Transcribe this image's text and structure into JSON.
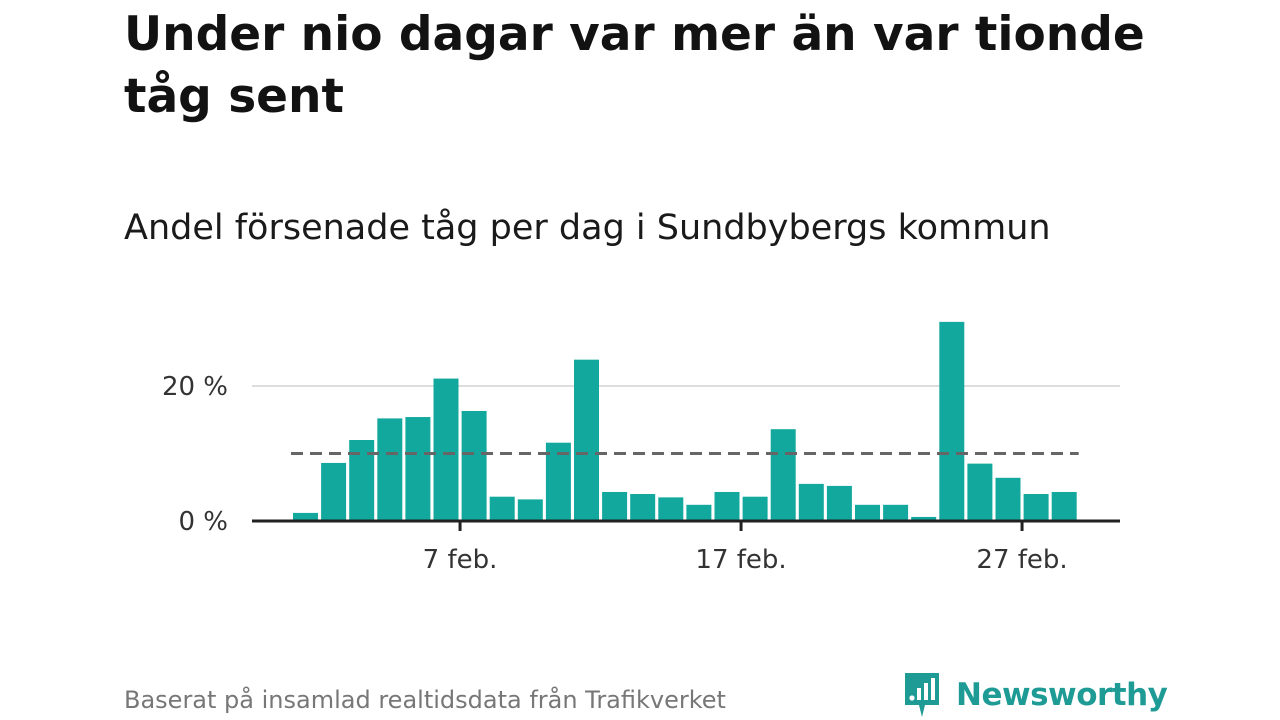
{
  "title": "Under nio dagar var mer än var tionde tåg sent",
  "subtitle": "Andel försenade tåg per dag i Sundbybergs kommun",
  "source": "Baserat på insamlad realtidsdata från Trafikverket",
  "brand": {
    "name": "Newsworthy",
    "color": "#1f9b96",
    "icon": "newsworthy-logo-icon"
  },
  "colors": {
    "bar": "#13a89e",
    "reference_line": "#666666",
    "gridline": "#dddddd",
    "axis": "#222222"
  },
  "chart_data": {
    "type": "bar",
    "title": "Andel försenade tåg per dag i Sundbybergs kommun",
    "x": [
      "1 feb.",
      "2 feb.",
      "3 feb.",
      "4 feb.",
      "5 feb.",
      "6 feb.",
      "7 feb.",
      "8 feb.",
      "9 feb.",
      "10 feb.",
      "11 feb.",
      "12 feb.",
      "13 feb.",
      "14 feb.",
      "15 feb.",
      "16 feb.",
      "17 feb.",
      "18 feb.",
      "19 feb.",
      "20 feb.",
      "21 feb.",
      "22 feb.",
      "23 feb.",
      "24 feb.",
      "25 feb.",
      "26 feb.",
      "27 feb.",
      "28 feb."
    ],
    "values": [
      1.2,
      8.6,
      12.0,
      15.2,
      15.4,
      21.1,
      16.3,
      3.6,
      3.2,
      11.6,
      23.9,
      4.3,
      4.0,
      3.5,
      2.4,
      4.3,
      3.6,
      13.6,
      5.5,
      5.2,
      2.4,
      2.4,
      0.6,
      29.5,
      8.5,
      6.4,
      4.0,
      4.3
    ],
    "x_tick_labels": [
      "7 feb.",
      "17 feb.",
      "27 feb."
    ],
    "y_ticks": [
      0,
      20
    ],
    "y_tick_labels": [
      "0 %",
      "20 %"
    ],
    "ylim": [
      0,
      30
    ],
    "reference_line": 10,
    "grid": true
  }
}
